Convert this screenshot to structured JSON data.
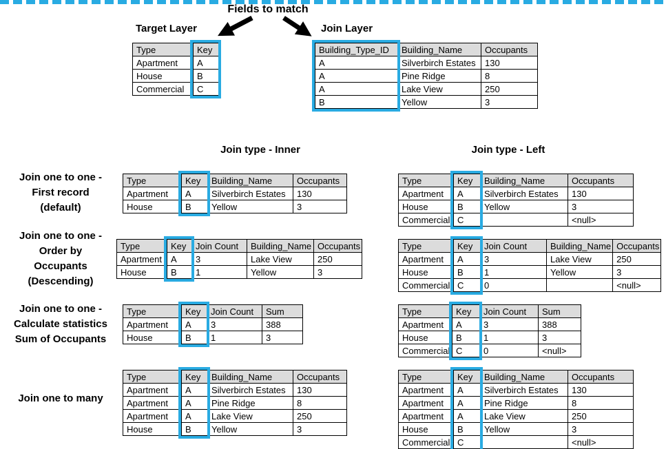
{
  "labels": {
    "fields_to_match": "Fields to match"
  },
  "headings": {
    "inner": "Join type - Inner",
    "left": "Join type - Left"
  },
  "top": {
    "target": {
      "title": "Target Layer",
      "columns": [
        "Type",
        "Key"
      ],
      "highlight": 1,
      "rows": [
        [
          "Apartment",
          "A"
        ],
        [
          "House",
          "B"
        ],
        [
          "Commercial",
          "C"
        ]
      ]
    },
    "join": {
      "title": "Join Layer",
      "columns": [
        "Building_Type_ID",
        "Building_Name",
        "Occupants"
      ],
      "highlight": 0,
      "rows": [
        [
          "A",
          "Silverbirch Estates",
          "130"
        ],
        [
          "A",
          "Pine Ridge",
          "8"
        ],
        [
          "A",
          "Lake View",
          "250"
        ],
        [
          "B",
          "Yellow",
          "3"
        ]
      ]
    }
  },
  "examples": [
    {
      "label_lines": [
        "Join one to one -",
        "First record",
        "(default)"
      ],
      "inner": {
        "columns": [
          "Type",
          "Key",
          "Building_Name",
          "Occupants"
        ],
        "highlight": 1,
        "rows": [
          [
            "Apartment",
            "A",
            "Silverbirch Estates",
            "130"
          ],
          [
            "House",
            "B",
            "Yellow",
            "3"
          ]
        ]
      },
      "left": {
        "columns": [
          "Type",
          "Key",
          "Building_Name",
          "Occupants"
        ],
        "highlight": 1,
        "rows": [
          [
            "Apartment",
            "A",
            "Silverbirch Estates",
            "130"
          ],
          [
            "House",
            "B",
            "Yellow",
            "3"
          ],
          [
            "Commercial",
            "C",
            "",
            "<null>"
          ]
        ]
      }
    },
    {
      "label_lines": [
        "Join one to one -",
        "Order by",
        "Occupants",
        "(Descending)"
      ],
      "inner": {
        "columns": [
          "Type",
          "Key",
          "Join Count",
          "Building_Name",
          "Occupants"
        ],
        "highlight": 1,
        "rows": [
          [
            "Apartment",
            "A",
            "3",
            "Lake View",
            "250"
          ],
          [
            "House",
            "B",
            "1",
            "Yellow",
            "3"
          ]
        ]
      },
      "left": {
        "columns": [
          "Type",
          "Key",
          "Join Count",
          "Building_Name",
          "Occupants"
        ],
        "highlight": 1,
        "rows": [
          [
            "Apartment",
            "A",
            "3",
            "Lake View",
            "250"
          ],
          [
            "House",
            "B",
            "1",
            "Yellow",
            "3"
          ],
          [
            "Commercial",
            "C",
            "0",
            "",
            "<null>"
          ]
        ]
      }
    },
    {
      "label_lines": [
        "Join one to one -",
        "Calculate statistics",
        "Sum of Occupants"
      ],
      "inner": {
        "columns": [
          "Type",
          "Key",
          "Join Count",
          "Sum"
        ],
        "highlight": 1,
        "rows": [
          [
            "Apartment",
            "A",
            "3",
            "388"
          ],
          [
            "House",
            "B",
            "1",
            "3"
          ]
        ]
      },
      "left": {
        "columns": [
          "Type",
          "Key",
          "Join Count",
          "Sum"
        ],
        "highlight": 1,
        "rows": [
          [
            "Apartment",
            "A",
            "3",
            "388"
          ],
          [
            "House",
            "B",
            "1",
            "3"
          ],
          [
            "Commercial",
            "C",
            "0",
            "<null>"
          ]
        ]
      }
    },
    {
      "label_lines": [
        "Join one to many"
      ],
      "inner": {
        "columns": [
          "Type",
          "Key",
          "Building_Name",
          "Occupants"
        ],
        "highlight": 1,
        "rows": [
          [
            "Apartment",
            "A",
            "Silverbirch Estates",
            "130"
          ],
          [
            "Apartment",
            "A",
            "Pine Ridge",
            "8"
          ],
          [
            "Apartment",
            "A",
            "Lake View",
            "250"
          ],
          [
            "House",
            "B",
            "Yellow",
            "3"
          ]
        ]
      },
      "left": {
        "columns": [
          "Type",
          "Key",
          "Building_Name",
          "Occupants"
        ],
        "highlight": 1,
        "rows": [
          [
            "Apartment",
            "A",
            "Silverbirch Estates",
            "130"
          ],
          [
            "Apartment",
            "A",
            "Pine Ridge",
            "8"
          ],
          [
            "Apartment",
            "A",
            "Lake View",
            "250"
          ],
          [
            "House",
            "B",
            "Yellow",
            "3"
          ],
          [
            "Commercial",
            "C",
            "",
            "<null>"
          ]
        ]
      }
    }
  ],
  "colors": {
    "accent": "#29abe2",
    "header_bg": "#dcdcdc",
    "border": "#000000"
  }
}
